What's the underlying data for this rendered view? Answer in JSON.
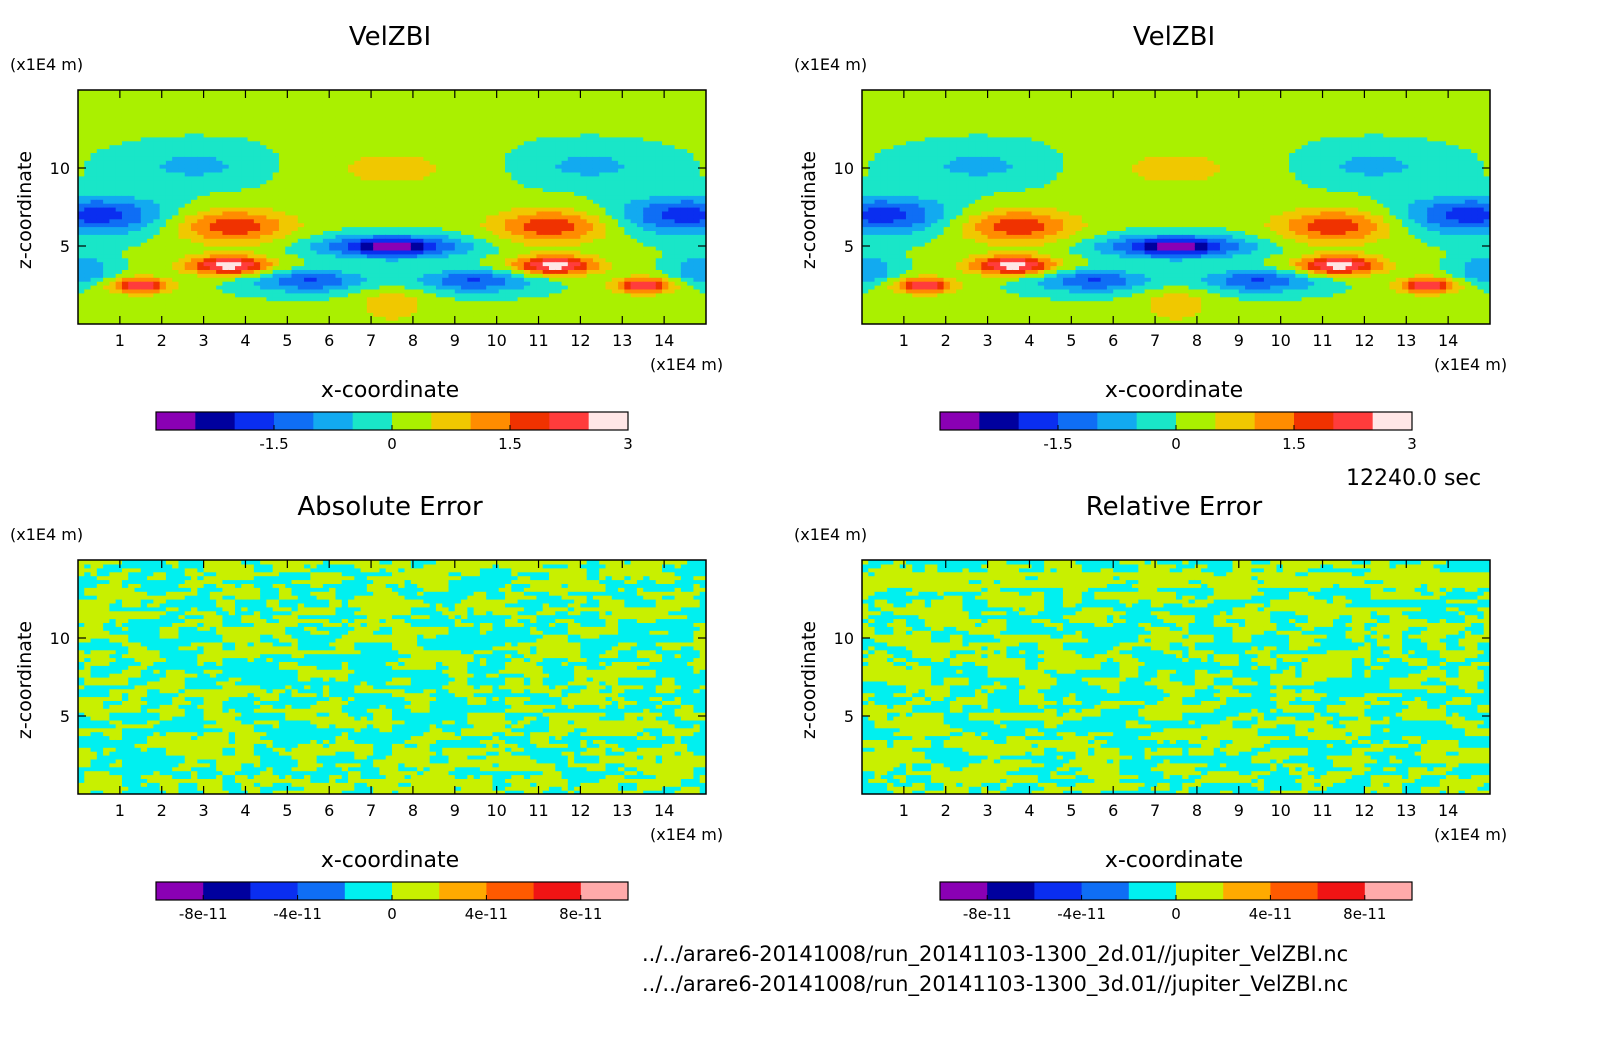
{
  "time_label": "12240.0 sec",
  "file_paths": [
    "../../arare6-20141008/run_20141103-1300_2d.01//jupiter_VelZBI.nc",
    "../../arare6-20141008/run_20141103-1300_3d.01//jupiter_VelZBI.nc"
  ],
  "chart_data": [
    {
      "type": "heatmap",
      "title": "VelZBI",
      "xlabel": "x-coordinate",
      "ylabel": "z-coordinate",
      "x_unit": "(x1E4 m)",
      "y_unit": "(x1E4 m)",
      "xlim": [
        0,
        15
      ],
      "ylim": [
        0,
        15
      ],
      "x_ticks": [
        "1",
        "2",
        "3",
        "4",
        "5",
        "6",
        "7",
        "8",
        "9",
        "10",
        "11",
        "12",
        "13",
        "14"
      ],
      "y_ticks": [
        "5",
        "10"
      ],
      "colorbar": {
        "ticks": [
          "-1.5",
          "0",
          "1.5",
          "3"
        ],
        "levels": [
          -2.25,
          -2.0,
          -1.5,
          -1.0,
          -0.5,
          0,
          0.5,
          1.0,
          1.5,
          2.0,
          2.5,
          3.0
        ],
        "colors": [
          "#8a00b4",
          "#00009e",
          "#0a2ef0",
          "#0f6ef5",
          "#12aaf0",
          "#19e6c8",
          "#aaf000",
          "#f0c800",
          "#ff8c00",
          "#f03200",
          "#ff3c3c",
          "#ffe6e6"
        ]
      },
      "features": [
        {
          "label": "upward core left",
          "value": 3.0
        },
        {
          "label": "upward core right",
          "value": 3.0
        },
        {
          "label": "downward core center",
          "value": -2.25
        }
      ]
    },
    {
      "type": "heatmap",
      "title": "VelZBI",
      "xlabel": "x-coordinate",
      "ylabel": "z-coordinate",
      "x_unit": "(x1E4 m)",
      "y_unit": "(x1E4 m)",
      "xlim": [
        0,
        15
      ],
      "ylim": [
        0,
        15
      ],
      "x_ticks": [
        "1",
        "2",
        "3",
        "4",
        "5",
        "6",
        "7",
        "8",
        "9",
        "10",
        "11",
        "12",
        "13",
        "14"
      ],
      "y_ticks": [
        "5",
        "10"
      ],
      "colorbar": {
        "ticks": [
          "-1.5",
          "0",
          "1.5",
          "3"
        ],
        "levels": [
          -2.25,
          -2.0,
          -1.5,
          -1.0,
          -0.5,
          0,
          0.5,
          1.0,
          1.5,
          2.0,
          2.5,
          3.0
        ],
        "colors": [
          "#8a00b4",
          "#00009e",
          "#0a2ef0",
          "#0f6ef5",
          "#12aaf0",
          "#19e6c8",
          "#aaf000",
          "#f0c800",
          "#ff8c00",
          "#f03200",
          "#ff3c3c",
          "#ffe6e6"
        ]
      }
    },
    {
      "type": "heatmap",
      "title": "Absolute Error",
      "xlabel": "x-coordinate",
      "ylabel": "z-coordinate",
      "x_unit": "(x1E4 m)",
      "y_unit": "(x1E4 m)",
      "xlim": [
        0,
        15
      ],
      "ylim": [
        0,
        15
      ],
      "x_ticks": [
        "1",
        "2",
        "3",
        "4",
        "5",
        "6",
        "7",
        "8",
        "9",
        "10",
        "11",
        "12",
        "13",
        "14"
      ],
      "y_ticks": [
        "5",
        "10"
      ],
      "colorbar": {
        "ticks": [
          "-8e-11",
          "-4e-11",
          "0",
          "4e-11",
          "8e-11"
        ],
        "colors": [
          "#8a00b4",
          "#00009e",
          "#0a2ef0",
          "#0f6ef5",
          "#00f0f0",
          "#c8f000",
          "#ffaa00",
          "#ff5a00",
          "#f01414",
          "#ffaaaa"
        ]
      },
      "dominant_levels": [
        "0 (cyan)",
        "positive small (yellow-green)"
      ]
    },
    {
      "type": "heatmap",
      "title": "Relative Error",
      "xlabel": "x-coordinate",
      "ylabel": "z-coordinate",
      "x_unit": "(x1E4 m)",
      "y_unit": "(x1E4 m)",
      "xlim": [
        0,
        15
      ],
      "ylim": [
        0,
        15
      ],
      "x_ticks": [
        "1",
        "2",
        "3",
        "4",
        "5",
        "6",
        "7",
        "8",
        "9",
        "10",
        "11",
        "12",
        "13",
        "14"
      ],
      "y_ticks": [
        "5",
        "10"
      ],
      "colorbar": {
        "ticks": [
          "-8e-11",
          "-4e-11",
          "0",
          "4e-11",
          "8e-11"
        ],
        "colors": [
          "#8a00b4",
          "#00009e",
          "#0a2ef0",
          "#0f6ef5",
          "#00f0f0",
          "#c8f000",
          "#ffaa00",
          "#ff5a00",
          "#f01414",
          "#ffaaaa"
        ]
      },
      "dominant_levels": [
        "0 (cyan)",
        "positive small (yellow-green)"
      ]
    }
  ]
}
